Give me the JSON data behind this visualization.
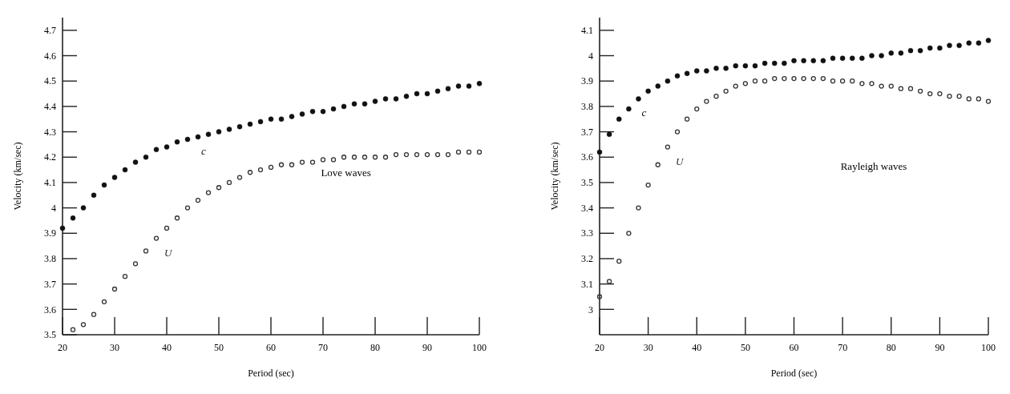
{
  "chart_data": [
    {
      "type": "scatter",
      "xlabel": "Period (sec)",
      "ylabel": "Velocity (km/sec)",
      "xlim": [
        20,
        100
      ],
      "xticks": [
        20,
        30,
        40,
        50,
        60,
        70,
        80,
        90,
        100
      ],
      "ylim": [
        3.5,
        4.75
      ],
      "yticks": [
        3.5,
        3.6,
        3.7,
        3.8,
        3.9,
        4.0,
        4.1,
        4.2,
        4.3,
        4.4,
        4.5,
        4.6,
        4.7
      ],
      "grid": false,
      "legend": false,
      "annotations": [
        "Love waves"
      ],
      "series": [
        {
          "name": "c",
          "color": "#111111",
          "marker": "circle",
          "x": [
            20,
            22,
            24,
            26,
            28,
            30,
            32,
            34,
            36,
            38,
            40,
            42,
            44,
            46,
            48,
            50,
            52,
            54,
            56,
            58,
            60,
            62,
            64,
            66,
            68,
            70,
            72,
            74,
            76,
            78,
            80,
            82,
            84,
            86,
            88,
            90,
            92,
            94,
            96,
            98,
            100
          ],
          "values": [
            3.92,
            3.96,
            4.0,
            4.05,
            4.09,
            4.12,
            4.15,
            4.18,
            4.2,
            4.23,
            4.24,
            4.26,
            4.27,
            4.28,
            4.29,
            4.3,
            4.31,
            4.32,
            4.33,
            4.34,
            4.35,
            4.35,
            4.36,
            4.37,
            4.38,
            4.38,
            4.39,
            4.4,
            4.41,
            4.41,
            4.42,
            4.43,
            4.43,
            4.44,
            4.45,
            4.45,
            4.46,
            4.47,
            4.48,
            4.48,
            4.49
          ]
        },
        {
          "name": "U",
          "color": "#333333",
          "marker": "open_circle",
          "x": [
            22,
            24,
            26,
            28,
            30,
            32,
            34,
            36,
            38,
            40,
            42,
            44,
            46,
            48,
            50,
            52,
            54,
            56,
            58,
            60,
            62,
            64,
            66,
            68,
            70,
            72,
            74,
            76,
            78,
            80,
            82,
            84,
            86,
            88,
            90,
            92,
            94,
            96,
            98,
            100
          ],
          "values": [
            3.52,
            3.54,
            3.58,
            3.63,
            3.68,
            3.73,
            3.78,
            3.83,
            3.88,
            3.92,
            3.96,
            4.0,
            4.03,
            4.06,
            4.08,
            4.1,
            4.12,
            4.14,
            4.15,
            4.16,
            4.17,
            4.17,
            4.18,
            4.18,
            4.19,
            4.19,
            4.2,
            4.2,
            4.2,
            4.2,
            4.2,
            4.21,
            4.21,
            4.21,
            4.21,
            4.21,
            4.21,
            4.22,
            4.22,
            4.22
          ]
        }
      ]
    },
    {
      "type": "scatter",
      "xlabel": "Period (sec)",
      "ylabel": "Velocity (km/sec)",
      "xlim": [
        20,
        100
      ],
      "xticks": [
        20,
        30,
        40,
        50,
        60,
        70,
        80,
        90,
        100
      ],
      "ylim": [
        2.9,
        4.15
      ],
      "yticks": [
        3.0,
        3.1,
        3.2,
        3.3,
        3.4,
        3.5,
        3.6,
        3.7,
        3.8,
        3.9,
        4.0,
        4.1
      ],
      "grid": false,
      "legend": false,
      "annotations": [
        "Rayleigh waves"
      ],
      "series": [
        {
          "name": "c",
          "color": "#111111",
          "marker": "circle",
          "x": [
            20,
            22,
            24,
            26,
            28,
            30,
            32,
            34,
            36,
            38,
            40,
            42,
            44,
            46,
            48,
            50,
            52,
            54,
            56,
            58,
            60,
            62,
            64,
            66,
            68,
            70,
            72,
            74,
            76,
            78,
            80,
            82,
            84,
            86,
            88,
            90,
            92,
            94,
            96,
            98,
            100
          ],
          "values": [
            3.62,
            3.69,
            3.75,
            3.79,
            3.83,
            3.86,
            3.88,
            3.9,
            3.92,
            3.93,
            3.94,
            3.94,
            3.95,
            3.95,
            3.96,
            3.96,
            3.96,
            3.97,
            3.97,
            3.97,
            3.98,
            3.98,
            3.98,
            3.98,
            3.99,
            3.99,
            3.99,
            3.99,
            4.0,
            4.0,
            4.01,
            4.01,
            4.02,
            4.02,
            4.03,
            4.03,
            4.04,
            4.04,
            4.05,
            4.05,
            4.06
          ]
        },
        {
          "name": "U",
          "color": "#333333",
          "marker": "open_circle",
          "x": [
            20,
            22,
            24,
            26,
            28,
            30,
            32,
            34,
            36,
            38,
            40,
            42,
            44,
            46,
            48,
            50,
            52,
            54,
            56,
            58,
            60,
            62,
            64,
            66,
            68,
            70,
            72,
            74,
            76,
            78,
            80,
            82,
            84,
            86,
            88,
            90,
            92,
            94,
            96,
            98,
            100
          ],
          "values": [
            3.05,
            3.11,
            3.19,
            3.3,
            3.4,
            3.49,
            3.57,
            3.64,
            3.7,
            3.75,
            3.79,
            3.82,
            3.84,
            3.86,
            3.88,
            3.89,
            3.9,
            3.9,
            3.91,
            3.91,
            3.91,
            3.91,
            3.91,
            3.91,
            3.9,
            3.9,
            3.9,
            3.89,
            3.89,
            3.88,
            3.88,
            3.87,
            3.87,
            3.86,
            3.85,
            3.85,
            3.84,
            3.84,
            3.83,
            3.83,
            3.82
          ]
        }
      ]
    }
  ]
}
